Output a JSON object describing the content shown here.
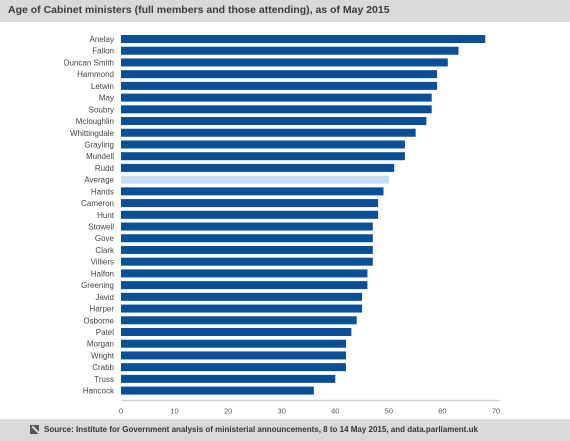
{
  "title": "Age of Cabinet ministers (full members and those attending), as of May 2015",
  "source": "Source: Institute for Government analysis of ministerial announcements, 8 to 14 May 2015, and data.parliament.uk",
  "colors": {
    "bar": "#0b4f96",
    "highlight": "#c5dcf3",
    "header": "#d9d9d9"
  },
  "icons": {
    "footer": "source-icon"
  },
  "chart_data": {
    "type": "bar",
    "orientation": "horizontal",
    "title": "Age of Cabinet ministers (full members and those attending), as of May 2015",
    "xlabel": "",
    "ylabel": "",
    "xlim": [
      0,
      70
    ],
    "xticks": [
      0,
      10,
      20,
      30,
      40,
      50,
      60,
      70
    ],
    "grid": false,
    "highlight_category": "Average",
    "categories": [
      "Anelay",
      "Fallon",
      "Duncan Smith",
      "Hammond",
      "Letwin",
      "May",
      "Soubry",
      "Mcloughlin",
      "Whittingdale",
      "Grayling",
      "Mundell",
      "Rudd",
      "Average",
      "Hands",
      "Cameron",
      "Hunt",
      "Stowell",
      "Gove",
      "Clark",
      "Villiers",
      "Halfon",
      "Greening",
      "Javid",
      "Harper",
      "Osborne",
      "Patel",
      "Morgan",
      "Wright",
      "Crabb",
      "Truss",
      "Hancock"
    ],
    "values": [
      68,
      63,
      61,
      59,
      59,
      58,
      58,
      57,
      55,
      53,
      53,
      51,
      50,
      49,
      48,
      48,
      47,
      47,
      47,
      47,
      46,
      46,
      45,
      45,
      44,
      43,
      42,
      42,
      42,
      40,
      36
    ]
  }
}
